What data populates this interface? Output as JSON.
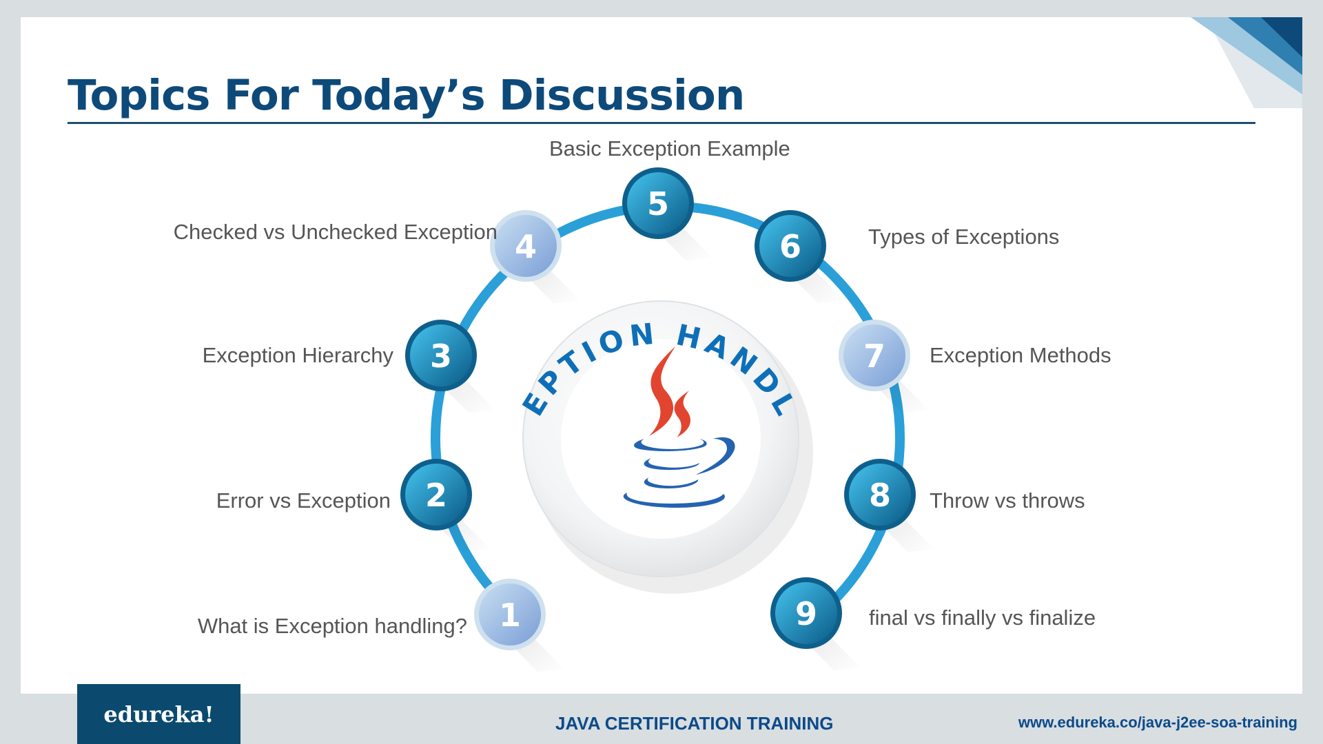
{
  "slide": {
    "title": "Topics For Today’s Discussion",
    "center_label": "EXCEPTION HANDLING"
  },
  "topics": [
    {
      "number": "1",
      "label": "What is Exception handling?"
    },
    {
      "number": "2",
      "label": "Error vs Exception"
    },
    {
      "number": "3",
      "label": "Exception Hierarchy"
    },
    {
      "number": "4",
      "label": "Checked vs Unchecked   Exception"
    },
    {
      "number": "5",
      "label": "Basic Exception Example"
    },
    {
      "number": "6",
      "label": "Types of Exceptions"
    },
    {
      "number": "7",
      "label": "Exception Methods"
    },
    {
      "number": "8",
      "label": "Throw vs throws"
    },
    {
      "number": "9",
      "label": "final vs finally vs finalize"
    }
  ],
  "footer": {
    "brand": "edureka!",
    "course": "JAVA CERTIFICATION TRAINING",
    "url": "www.edureka.co/java-j2ee-soa-training"
  },
  "icons": {
    "center": "java-coffee-cup-icon"
  },
  "colors": {
    "title": "#0d4a7a",
    "dark_blue": "#0b4a6e",
    "light_blue": "#a9c6e6",
    "ring": "#2a9fd8",
    "flame": "#e2452f"
  }
}
